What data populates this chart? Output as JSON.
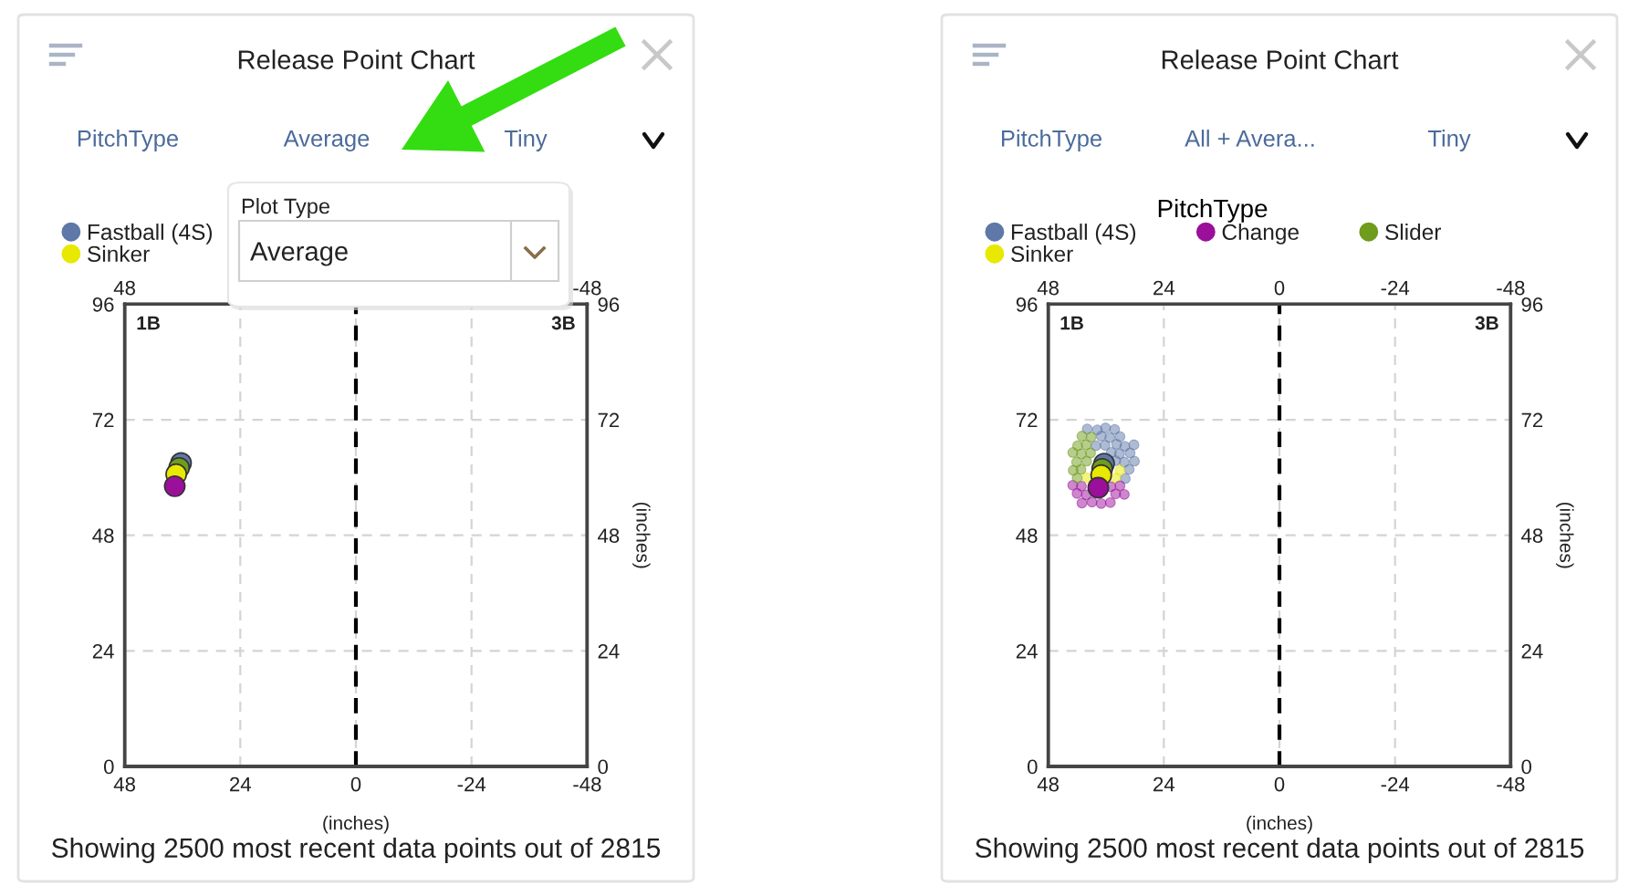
{
  "chart_data": [
    {
      "type": "scatter",
      "title": "Release Point Chart",
      "xlabel": "(inches)",
      "y2label": "(inches)",
      "xlim": [
        48,
        -48
      ],
      "xticks": [
        48,
        24,
        0,
        -24,
        -48
      ],
      "x2lim": [
        48,
        -48
      ],
      "x2ticks": [
        48,
        -48
      ],
      "ylim": [
        0,
        96
      ],
      "yticks": [
        0,
        24,
        48,
        72,
        96
      ],
      "y2lim": [
        0,
        96
      ],
      "y2ticks": [
        0,
        24,
        48,
        72,
        96
      ],
      "grid": true,
      "legend": "top left",
      "marker": "circle",
      "ref_lines": [
        {
          "axis": "x",
          "value": 0,
          "color": "#000000",
          "line_style": "dashed"
        }
      ],
      "annotations": [
        "1B",
        "3B",
        "Showing 2500 most recent data points out of 2815",
        "PitchType",
        "Average",
        "Tiny",
        "Plot Type",
        "Average"
      ],
      "series": [
        {
          "name": "Fastball (4S)",
          "color": "#5e78a8",
          "type": "bubble",
          "x": [
            36.3
          ],
          "values": [
            63.0
          ],
          "sizes": [
            1
          ]
        },
        {
          "color": "#6f9c1c",
          "type": "bubble",
          "x": [
            36.7
          ],
          "values": [
            62.0
          ],
          "sizes": [
            1
          ]
        },
        {
          "name": "Sinker",
          "color": "#e8e800",
          "type": "bubble",
          "x": [
            37.3
          ],
          "values": [
            60.7
          ],
          "sizes": [
            1
          ]
        },
        {
          "color": "#9b0f9b",
          "type": "bubble",
          "x": [
            37.6
          ],
          "values": [
            58.2
          ],
          "sizes": [
            1
          ]
        }
      ]
    },
    {
      "type": "scatter",
      "title": "Release Point Chart",
      "xlabel": "(inches)",
      "y2label": "(inches)",
      "legend_title": "PitchType",
      "xlim": [
        48,
        -48
      ],
      "xticks": [
        48,
        24,
        0,
        -24,
        -48
      ],
      "x2lim": [
        48,
        -48
      ],
      "x2ticks": [
        48,
        24,
        0,
        -24,
        -48
      ],
      "ylim": [
        0,
        96
      ],
      "yticks": [
        0,
        24,
        48,
        72,
        96
      ],
      "y2lim": [
        0,
        96
      ],
      "y2ticks": [
        0,
        24,
        48,
        72,
        96
      ],
      "grid": true,
      "legend": "top",
      "marker": "circle",
      "ref_lines": [
        {
          "axis": "x",
          "value": 0,
          "color": "#000000",
          "line_style": "dashed"
        }
      ],
      "annotations": [
        "1B",
        "3B",
        "Showing 2500 most recent data points out of 2815",
        "PitchType",
        "All + Avera...",
        "Tiny"
      ],
      "series": [
        {
          "name": "Fastball (4S)",
          "color": "#5e78a8",
          "x": [
            34.2,
            36.1,
            37.8,
            39.9,
            33.1,
            35.2,
            37.0,
            30.2,
            32.1,
            33.8,
            36.2,
            38.1,
            31.0,
            33.2,
            34.9,
            30.1,
            32.2,
            34.0,
            31.2,
            32.0
          ],
          "values": [
            70.0,
            70.3,
            69.9,
            70.1,
            68.5,
            68.3,
            68.6,
            66.8,
            66.5,
            66.9,
            66.7,
            66.6,
            65.1,
            64.9,
            65.2,
            63.4,
            63.2,
            63.5,
            61.7,
            59.8
          ]
        },
        {
          "name": "Sinker",
          "color": "#e8e800",
          "x": [
            33.1,
            34.0,
            40.0
          ],
          "values": [
            61.5,
            59.9,
            60.0
          ]
        },
        {
          "name": "Change",
          "color": "#9b0f9b",
          "x": [
            33.1,
            35.0,
            41.1,
            42.9,
            32.2,
            34.0,
            40.1,
            42.0,
            35.1,
            37.0,
            38.9,
            41.0
          ],
          "values": [
            58.3,
            58.1,
            58.2,
            58.4,
            56.5,
            56.6,
            56.4,
            56.7,
            54.8,
            54.6,
            54.9,
            54.7
          ]
        },
        {
          "name": "Slider",
          "color": "#6f9c1c",
          "x": [
            39.1,
            41.0,
            40.1,
            41.9,
            39.2,
            41.1,
            42.9,
            40.0,
            42.1,
            41.2,
            42.8,
            42.0
          ],
          "values": [
            68.4,
            68.6,
            66.8,
            66.6,
            65.1,
            64.9,
            65.2,
            63.4,
            63.2,
            61.7,
            61.5,
            59.9
          ]
        },
        {
          "color": "#5e78a8",
          "type": "bubble",
          "x": [
            36.4
          ],
          "values": [
            62.9
          ],
          "sizes": [
            1
          ]
        },
        {
          "color": "#6f9c1c",
          "type": "bubble",
          "x": [
            36.8
          ],
          "values": [
            61.8
          ],
          "sizes": [
            1
          ]
        },
        {
          "color": "#e8e800",
          "type": "bubble",
          "x": [
            37.0
          ],
          "values": [
            60.5
          ],
          "sizes": [
            1
          ]
        },
        {
          "color": "#9b0f9b",
          "type": "bubble",
          "x": [
            37.6
          ],
          "values": [
            57.9
          ],
          "sizes": [
            1
          ]
        }
      ]
    }
  ]
}
